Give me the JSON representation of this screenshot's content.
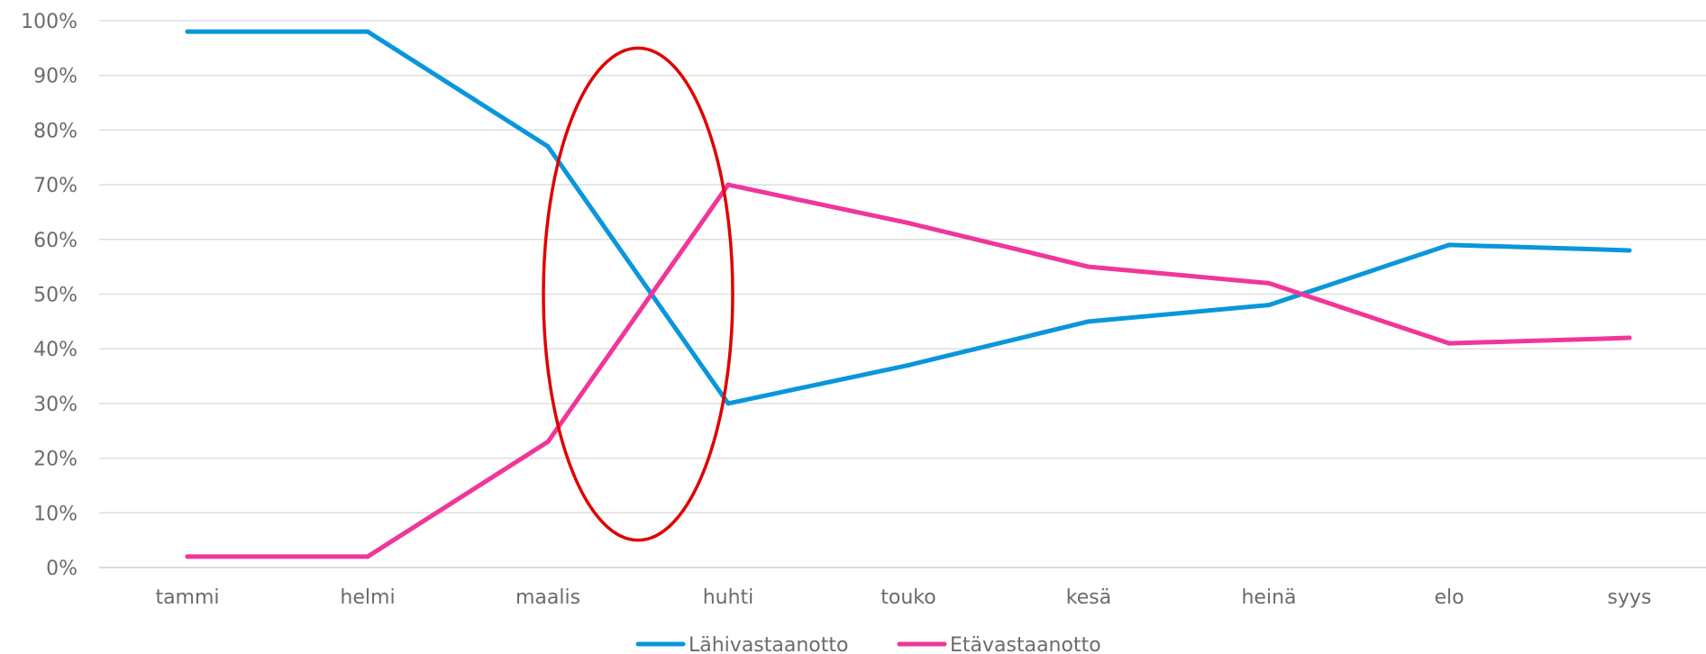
{
  "chart_data": {
    "type": "line",
    "title": "",
    "xlabel": "",
    "ylabel": "",
    "categories": [
      "tammi",
      "helmi",
      "maalis",
      "huhti",
      "touko",
      "kesä",
      "heinä",
      "elo",
      "syys"
    ],
    "ylim": [
      0,
      100
    ],
    "yticks": [
      "0%",
      "10%",
      "20%",
      "30%",
      "40%",
      "50%",
      "60%",
      "70%",
      "80%",
      "90%",
      "100%"
    ],
    "grid": true,
    "legend_position": "bottom",
    "series": [
      {
        "name": "Lähivastaanotto",
        "color": "#0A96DC",
        "values": [
          98,
          98,
          77,
          30,
          37,
          45,
          48,
          59,
          58
        ]
      },
      {
        "name": "Etävastaanotto",
        "color": "#F0369A",
        "values": [
          2,
          2,
          23,
          70,
          63,
          55,
          52,
          41,
          42
        ]
      }
    ],
    "annotation": {
      "shape": "ellipse",
      "color": "#E00000",
      "center_category": 2.5,
      "center_y": 50,
      "y_from": 4.5,
      "y_to": 94.5,
      "width_categories": 1.05
    }
  }
}
